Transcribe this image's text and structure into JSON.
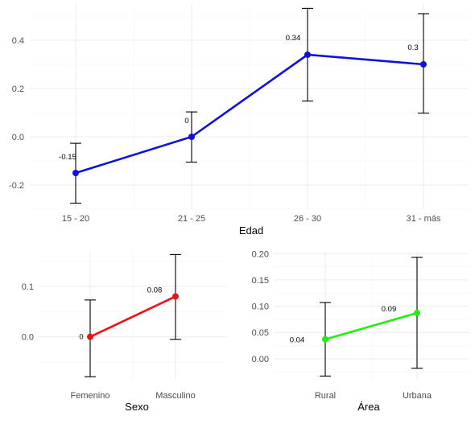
{
  "chart_data": [
    {
      "type": "line",
      "id": "edad",
      "xlabel": "Edad",
      "ylabel": "",
      "categories": [
        "15 - 20",
        "21 - 25",
        "26 - 30",
        "31 - más"
      ],
      "values": [
        -0.15,
        0.0,
        0.34,
        0.3
      ],
      "labels": [
        "-0.15",
        "0",
        "0.34",
        "0.3"
      ],
      "lower": [
        -0.275,
        -0.105,
        0.148,
        0.098
      ],
      "upper": [
        -0.027,
        0.103,
        0.532,
        0.51
      ],
      "ylim": [
        -0.3,
        0.55
      ],
      "yticks": [
        -0.2,
        0.0,
        0.2,
        0.4
      ],
      "ytick_labels": [
        "-0.2",
        "0.0",
        "0.2",
        "0.4"
      ],
      "color": "#1010d8",
      "grid": true
    },
    {
      "type": "line",
      "id": "sexo",
      "xlabel": "Sexo",
      "ylabel": "",
      "categories": [
        "Femenino",
        "Masculino"
      ],
      "values": [
        0.0,
        0.08
      ],
      "labels": [
        "0",
        "0.08"
      ],
      "lower": [
        -0.079,
        -0.005
      ],
      "upper": [
        0.073,
        0.163
      ],
      "ylim": [
        -0.085,
        0.17
      ],
      "yticks": [
        0.0,
        0.1
      ],
      "ytick_labels": [
        "0.0",
        "0.1"
      ],
      "color": "#ee1111",
      "grid": true
    },
    {
      "type": "line",
      "id": "area",
      "xlabel": "Área",
      "ylabel": "",
      "categories": [
        "Rural",
        "Urbana"
      ],
      "values": [
        0.037,
        0.087
      ],
      "labels": [
        "0.04",
        "0.09"
      ],
      "lower": [
        -0.033,
        -0.018
      ],
      "upper": [
        0.107,
        0.193
      ],
      "ylim": [
        -0.04,
        0.205
      ],
      "yticks": [
        0.0,
        0.05,
        0.1,
        0.15,
        0.2
      ],
      "ytick_labels": [
        "0.00",
        "0.05",
        "0.10",
        "0.15",
        "0.20"
      ],
      "color": "#22ee11",
      "grid": true
    }
  ]
}
